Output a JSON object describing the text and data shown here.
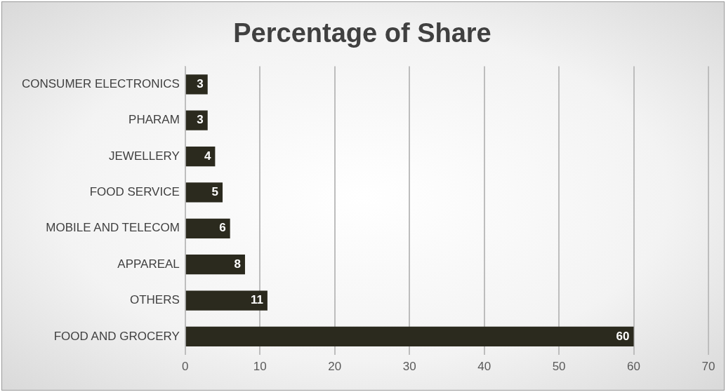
{
  "chart_data": {
    "type": "bar",
    "orientation": "horizontal",
    "title": "Percentage of Share",
    "categories": [
      "CONSUMER ELECTRONICS",
      "PHARAM",
      "JEWELLERY",
      "FOOD SERVICE",
      "MOBILE AND TELECOM",
      "APPAREAL",
      "OTHERS",
      "FOOD AND GROCERY"
    ],
    "values": [
      3,
      3,
      4,
      5,
      6,
      8,
      11,
      60
    ],
    "color": "#2b2a1e",
    "xlim": [
      0,
      70
    ],
    "xticks": [
      0,
      10,
      20,
      30,
      40,
      50,
      60,
      70
    ],
    "grid": "x",
    "data_labels": true
  }
}
